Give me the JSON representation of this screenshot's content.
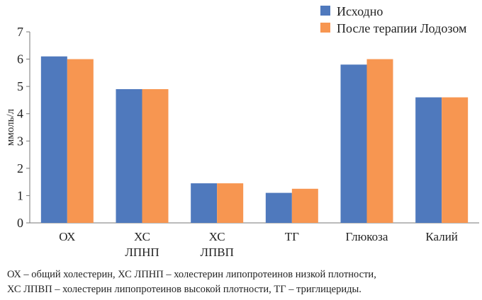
{
  "chart_data": {
    "type": "bar",
    "title": "",
    "xlabel": "",
    "ylabel": "ммоль/л",
    "ylim": [
      0,
      7
    ],
    "yticks": [
      0,
      1,
      2,
      3,
      4,
      5,
      6,
      7
    ],
    "grid": false,
    "legend_position": "top-right",
    "categories": [
      [
        "ОХ"
      ],
      [
        "ХС",
        "ЛПНП"
      ],
      [
        "ХС",
        "ЛПВП"
      ],
      [
        "ТГ"
      ],
      [
        "Глюкоза"
      ],
      [
        "Калий"
      ]
    ],
    "series": [
      {
        "name": "Исходно",
        "color": "#4f79bd",
        "values": [
          6.1,
          4.9,
          1.45,
          1.1,
          5.8,
          4.6
        ]
      },
      {
        "name": "После терапии Лодозом",
        "color": "#f79651",
        "values": [
          6.0,
          4.9,
          1.45,
          1.25,
          6.0,
          4.6
        ]
      }
    ]
  },
  "caption": [
    "ОХ – общий холестерин, ХС ЛПНП – холестерин липопротеинов низкой плотности,",
    "ХС ЛПВП – холестерин липопротеинов высокой плотности, ТГ – триглицериды."
  ]
}
